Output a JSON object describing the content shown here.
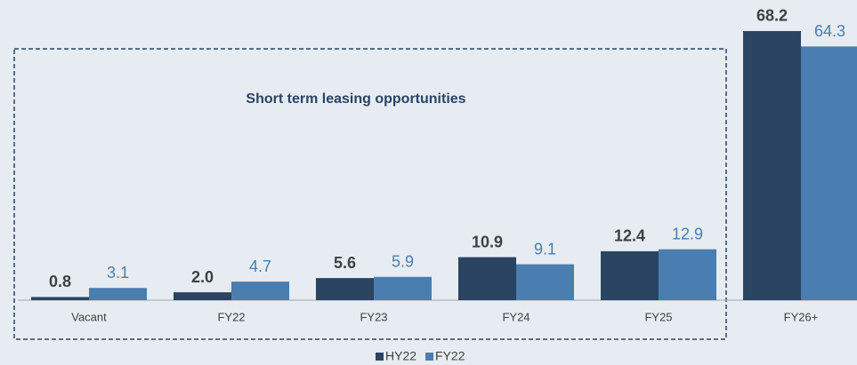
{
  "chart_data": {
    "type": "bar",
    "annotation": "Short term leasing opportunities",
    "categories": [
      "Vacant",
      "FY22",
      "FY23",
      "FY24",
      "FY25",
      "FY26+"
    ],
    "series": [
      {
        "name": "HY22",
        "color": "#2a4462",
        "values": [
          0.8,
          2.0,
          5.6,
          10.9,
          12.4,
          68.2
        ],
        "value_labels": [
          "0.8",
          "2.0",
          "5.6",
          "10.9",
          "12.4",
          "68.2"
        ]
      },
      {
        "name": "FY22",
        "color": "#4a7eb0",
        "values": [
          3.1,
          4.7,
          5.9,
          9.1,
          12.9,
          64.3
        ],
        "value_labels": [
          "3.1",
          "4.7",
          "5.9",
          "9.1",
          "12.9",
          "64.3"
        ]
      }
    ],
    "ylim": [
      0,
      70
    ]
  }
}
